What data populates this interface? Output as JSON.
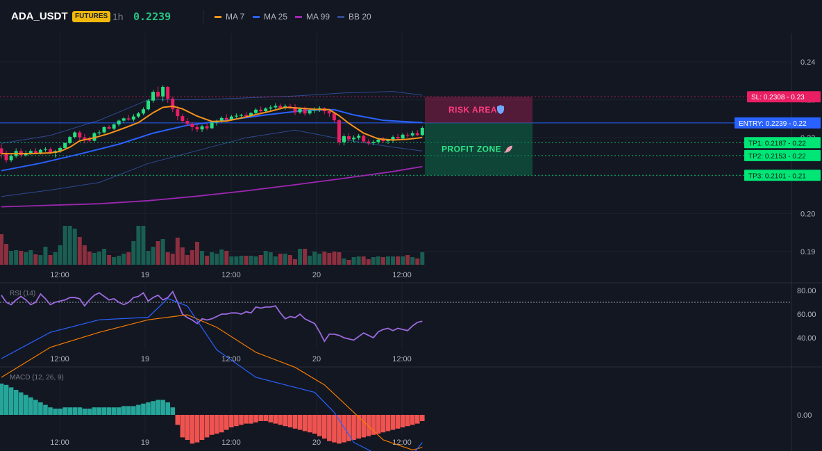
{
  "header": {
    "symbol": "ADA_USDT",
    "badge": "FUTURES",
    "timeframe": "1h",
    "price": "0.2239",
    "legend": [
      {
        "label": "MA 7",
        "color": "#f7931a"
      },
      {
        "label": "MA 25",
        "color": "#2962ff"
      },
      {
        "label": "MA 99",
        "color": "#9c27b0"
      },
      {
        "label": "BB 20",
        "color": "#2e4a8f"
      }
    ]
  },
  "colors": {
    "up": "#26e07f",
    "down": "#e91e63",
    "vol_up": "#1a5e52",
    "vol_down": "#8c2f3f",
    "hist_up": "#26a69a",
    "hist_down": "#ef5350"
  },
  "x_ticks": [
    "12:00",
    "19",
    "12:00",
    "20",
    "12:00"
  ],
  "chart_data": [
    {
      "type": "candlestick",
      "title": "",
      "ylim": [
        0.185,
        0.245
      ],
      "y_ticks": [
        "0.24",
        "0.23",
        "0.22",
        "0.21",
        "0.20",
        "0.19"
      ],
      "candles": [
        [
          0.2172,
          0.2183,
          0.2146,
          0.2157
        ],
        [
          0.2157,
          0.2166,
          0.2134,
          0.2141
        ],
        [
          0.2141,
          0.2156,
          0.2136,
          0.2152
        ],
        [
          0.2152,
          0.2172,
          0.2147,
          0.2165
        ],
        [
          0.2165,
          0.2172,
          0.2148,
          0.2154
        ],
        [
          0.2154,
          0.2166,
          0.215,
          0.216
        ],
        [
          0.216,
          0.217,
          0.2155,
          0.2165
        ],
        [
          0.2165,
          0.2173,
          0.2158,
          0.216
        ],
        [
          0.216,
          0.2171,
          0.2156,
          0.2168
        ],
        [
          0.2168,
          0.2175,
          0.2163,
          0.217
        ],
        [
          0.217,
          0.2174,
          0.2157,
          0.216
        ],
        [
          0.216,
          0.2168,
          0.2148,
          0.2165
        ],
        [
          0.2165,
          0.2178,
          0.216,
          0.2173
        ],
        [
          0.2173,
          0.2188,
          0.217,
          0.2186
        ],
        [
          0.2186,
          0.2205,
          0.2183,
          0.2202
        ],
        [
          0.2202,
          0.2217,
          0.2198,
          0.2214
        ],
        [
          0.2214,
          0.2219,
          0.2195,
          0.2201
        ],
        [
          0.2201,
          0.221,
          0.2185,
          0.2196
        ],
        [
          0.2196,
          0.2203,
          0.2188,
          0.2192
        ],
        [
          0.2192,
          0.2215,
          0.219,
          0.2212
        ],
        [
          0.2212,
          0.222,
          0.2208,
          0.2214
        ],
        [
          0.2214,
          0.223,
          0.2211,
          0.2228
        ],
        [
          0.2228,
          0.2233,
          0.2222,
          0.2224
        ],
        [
          0.2224,
          0.2238,
          0.222,
          0.2235
        ],
        [
          0.2235,
          0.2248,
          0.223,
          0.2245
        ],
        [
          0.2245,
          0.2254,
          0.224,
          0.2251
        ],
        [
          0.2251,
          0.226,
          0.2245,
          0.2248
        ],
        [
          0.2248,
          0.2262,
          0.2243,
          0.2256
        ],
        [
          0.2256,
          0.2268,
          0.2252,
          0.2264
        ],
        [
          0.2264,
          0.228,
          0.226,
          0.2275
        ],
        [
          0.2275,
          0.2302,
          0.2272,
          0.2298
        ],
        [
          0.2298,
          0.2326,
          0.2292,
          0.2321
        ],
        [
          0.2321,
          0.2335,
          0.2303,
          0.2309
        ],
        [
          0.2309,
          0.2338,
          0.2296,
          0.2334
        ],
        [
          0.2334,
          0.2336,
          0.2292,
          0.2303
        ],
        [
          0.2303,
          0.2308,
          0.2268,
          0.2275
        ],
        [
          0.2275,
          0.2283,
          0.2246,
          0.2257
        ],
        [
          0.2257,
          0.2263,
          0.2239,
          0.2244
        ],
        [
          0.2244,
          0.2252,
          0.2231,
          0.2237
        ],
        [
          0.2237,
          0.2241,
          0.2218,
          0.2228
        ],
        [
          0.2228,
          0.2236,
          0.2215,
          0.2222
        ],
        [
          0.2222,
          0.2234,
          0.2215,
          0.223
        ],
        [
          0.223,
          0.2238,
          0.222,
          0.2225
        ],
        [
          0.2225,
          0.2245,
          0.2223,
          0.224
        ],
        [
          0.224,
          0.2248,
          0.2232,
          0.2244
        ],
        [
          0.2244,
          0.2256,
          0.224,
          0.2252
        ],
        [
          0.2252,
          0.2262,
          0.2244,
          0.2248
        ],
        [
          0.2248,
          0.226,
          0.2245,
          0.2256
        ],
        [
          0.2256,
          0.2264,
          0.2252,
          0.2258
        ],
        [
          0.2258,
          0.2263,
          0.225,
          0.226
        ],
        [
          0.226,
          0.2268,
          0.2254,
          0.2257
        ],
        [
          0.2257,
          0.2268,
          0.2254,
          0.2265
        ],
        [
          0.2265,
          0.2278,
          0.2262,
          0.2274
        ],
        [
          0.2274,
          0.2282,
          0.2266,
          0.227
        ],
        [
          0.227,
          0.228,
          0.2265,
          0.2277
        ],
        [
          0.2277,
          0.2286,
          0.2272,
          0.228
        ],
        [
          0.228,
          0.2291,
          0.2276,
          0.2284
        ],
        [
          0.2284,
          0.229,
          0.2275,
          0.2279
        ],
        [
          0.2279,
          0.2288,
          0.2274,
          0.2283
        ],
        [
          0.2283,
          0.2289,
          0.2276,
          0.2281
        ],
        [
          0.2281,
          0.2288,
          0.226,
          0.2267
        ],
        [
          0.2267,
          0.228,
          0.2263,
          0.2276
        ],
        [
          0.2276,
          0.2282,
          0.2258,
          0.2264
        ],
        [
          0.2264,
          0.2276,
          0.226,
          0.2272
        ],
        [
          0.2272,
          0.228,
          0.2265,
          0.2275
        ],
        [
          0.2275,
          0.2283,
          0.2268,
          0.2278
        ],
        [
          0.2278,
          0.228,
          0.2262,
          0.227
        ],
        [
          0.227,
          0.2274,
          0.2255,
          0.2264
        ],
        [
          0.2264,
          0.2268,
          0.224,
          0.2246
        ],
        [
          0.2246,
          0.225,
          0.218,
          0.2188
        ],
        [
          0.2188,
          0.221,
          0.218,
          0.2204
        ],
        [
          0.2204,
          0.2212,
          0.219,
          0.2196
        ],
        [
          0.2196,
          0.2206,
          0.2188,
          0.22
        ],
        [
          0.22,
          0.221,
          0.2194,
          0.2205
        ],
        [
          0.2205,
          0.2208,
          0.2186,
          0.219
        ],
        [
          0.219,
          0.2196,
          0.218,
          0.2186
        ],
        [
          0.2186,
          0.2194,
          0.2181,
          0.2189
        ],
        [
          0.2189,
          0.22,
          0.2184,
          0.2195
        ],
        [
          0.2195,
          0.2202,
          0.2186,
          0.2191
        ],
        [
          0.2191,
          0.2197,
          0.2184,
          0.2194
        ],
        [
          0.2194,
          0.2206,
          0.2188,
          0.2202
        ],
        [
          0.2202,
          0.221,
          0.2194,
          0.2198
        ],
        [
          0.2198,
          0.2212,
          0.2195,
          0.2208
        ],
        [
          0.2208,
          0.2214,
          0.22,
          0.2206
        ],
        [
          0.2206,
          0.2218,
          0.2203,
          0.2212
        ],
        [
          0.2212,
          0.222,
          0.2204,
          0.2207
        ],
        [
          0.2207,
          0.223,
          0.2205,
          0.2226
        ]
      ],
      "volume": [
        44,
        30,
        20,
        21,
        20,
        18,
        21,
        15,
        14,
        26,
        14,
        18,
        28,
        56,
        56,
        52,
        40,
        28,
        19,
        17,
        19,
        23,
        14,
        11,
        13,
        16,
        18,
        34,
        56,
        56,
        20,
        26,
        34,
        37,
        18,
        16,
        39,
        25,
        14,
        21,
        33,
        20,
        13,
        18,
        16,
        22,
        20,
        12,
        12,
        13,
        13,
        13,
        12,
        14,
        20,
        18,
        12,
        16,
        16,
        14,
        8,
        23,
        23,
        13,
        19,
        16,
        19,
        17,
        19,
        18,
        9,
        7,
        11,
        12,
        12,
        8,
        11,
        12,
        11,
        12,
        12,
        12,
        12,
        14,
        11,
        9,
        18
      ],
      "ma7": [
        [
          0,
          0.2158
        ],
        [
          6,
          0.2158
        ],
        [
          10,
          0.216
        ],
        [
          12,
          0.2164
        ],
        [
          14,
          0.2175
        ],
        [
          16,
          0.2192
        ],
        [
          19,
          0.22
        ],
        [
          22,
          0.2211
        ],
        [
          25,
          0.2225
        ],
        [
          28,
          0.224
        ],
        [
          31,
          0.2266
        ],
        [
          33,
          0.228
        ],
        [
          35,
          0.2283
        ],
        [
          37,
          0.2276
        ],
        [
          40,
          0.2257
        ],
        [
          43,
          0.2243
        ],
        [
          46,
          0.2244
        ],
        [
          49,
          0.2252
        ],
        [
          52,
          0.2261
        ],
        [
          55,
          0.227
        ],
        [
          58,
          0.228
        ],
        [
          61,
          0.2278
        ],
        [
          64,
          0.2275
        ],
        [
          67,
          0.2274
        ],
        [
          69,
          0.2258
        ],
        [
          71,
          0.2238
        ],
        [
          74,
          0.2212
        ],
        [
          77,
          0.2197
        ],
        [
          80,
          0.2194
        ],
        [
          83,
          0.2196
        ],
        [
          85,
          0.2199
        ],
        [
          86,
          0.2201
        ]
      ],
      "ma25": [
        [
          0,
          0.2113
        ],
        [
          8,
          0.2133
        ],
        [
          16,
          0.2157
        ],
        [
          24,
          0.2183
        ],
        [
          31,
          0.2212
        ],
        [
          38,
          0.2233
        ],
        [
          46,
          0.2246
        ],
        [
          54,
          0.226
        ],
        [
          62,
          0.2272
        ],
        [
          68,
          0.2274
        ],
        [
          72,
          0.226
        ],
        [
          78,
          0.2246
        ],
        [
          84,
          0.2241
        ],
        [
          86,
          0.224
        ]
      ],
      "ma99": [
        [
          0,
          0.2018
        ],
        [
          10,
          0.2022
        ],
        [
          20,
          0.2026
        ],
        [
          30,
          0.2034
        ],
        [
          40,
          0.2046
        ],
        [
          50,
          0.206
        ],
        [
          60,
          0.2076
        ],
        [
          70,
          0.2093
        ],
        [
          80,
          0.2111
        ],
        [
          86,
          0.2124
        ]
      ],
      "bb_upper": [
        [
          0,
          0.2185
        ],
        [
          10,
          0.2206
        ],
        [
          20,
          0.2246
        ],
        [
          30,
          0.23
        ],
        [
          40,
          0.23
        ],
        [
          50,
          0.2305
        ],
        [
          60,
          0.231
        ],
        [
          70,
          0.2318
        ],
        [
          80,
          0.2322
        ],
        [
          86,
          0.2312
        ]
      ],
      "bb_lower": [
        [
          0,
          0.2045
        ],
        [
          10,
          0.2062
        ],
        [
          20,
          0.2082
        ],
        [
          30,
          0.2132
        ],
        [
          40,
          0.2166
        ],
        [
          50,
          0.22
        ],
        [
          60,
          0.222
        ],
        [
          70,
          0.2195
        ],
        [
          80,
          0.2175
        ],
        [
          86,
          0.2165
        ]
      ],
      "levels": [
        {
          "name": "SL",
          "label": "SL: 0.2308",
          "value": 0.2308,
          "tick": "0.23",
          "color": "#e91e63",
          "style": "dotted"
        },
        {
          "name": "ENTRY",
          "label": "ENTRY: 0.2239",
          "value": 0.2239,
          "tick": "0.22",
          "color": "#2962ff",
          "style": "solid"
        },
        {
          "name": "TP1",
          "label": "TP1: 0.2187",
          "value": 0.2187,
          "tick": "0.22",
          "color": "#00e676",
          "style": "dotted"
        },
        {
          "name": "TP2",
          "label": "TP2: 0.2153",
          "value": 0.2153,
          "tick": "0.22",
          "color": "#00e676",
          "style": "dotted"
        },
        {
          "name": "TP3",
          "label": "TP3: 0.2101",
          "value": 0.2101,
          "tick": "0.21",
          "color": "#00e676",
          "style": "dotted"
        }
      ],
      "zones": {
        "risk_label": "RISK AREA",
        "profit_label": "PROFIT ZONE"
      }
    },
    {
      "type": "line",
      "title": "RSI (14)",
      "ylim": [
        28,
        88
      ],
      "y_ticks": [
        "80.00",
        "60.00",
        "40.00"
      ],
      "reference_line": 70,
      "values": [
        76,
        70,
        68,
        72,
        75,
        72,
        68,
        70,
        77,
        73,
        68,
        70,
        71,
        72,
        74,
        74,
        73,
        67,
        72,
        76,
        78,
        75,
        72,
        73,
        70,
        68,
        70,
        74,
        75,
        78,
        71,
        74,
        76,
        72,
        74,
        79,
        70,
        60,
        57,
        55,
        52,
        56,
        55,
        56,
        58,
        60,
        60,
        61,
        61,
        60,
        62,
        61,
        66,
        65,
        66,
        66,
        67,
        61,
        56,
        58,
        57,
        60,
        56,
        54,
        52,
        45,
        37,
        43,
        43,
        42,
        40,
        39,
        38,
        41,
        44,
        42,
        40,
        45,
        47,
        48,
        46,
        48,
        47,
        46,
        50,
        53,
        54
      ],
      "line_color": "#9c6ade"
    },
    {
      "type": "line",
      "title": "MACD (12, 26, 9)",
      "ylim": [
        -0.0012,
        0.0012
      ],
      "y_ticks": [
        "0.00"
      ],
      "macd": [
        [
          0,
          0.00045
        ],
        [
          10,
          0.00066
        ],
        [
          20,
          0.00076
        ],
        [
          30,
          0.00078
        ],
        [
          34,
          0.00093
        ],
        [
          38,
          0.00087
        ],
        [
          44,
          0.00052
        ],
        [
          52,
          0.0003
        ],
        [
          58,
          0.00024
        ],
        [
          64,
          0.00018
        ],
        [
          68,
          2e-05
        ],
        [
          72,
          -0.00022
        ],
        [
          76,
          -0.0003
        ],
        [
          80,
          -0.00035
        ],
        [
          84,
          -0.00032
        ],
        [
          86,
          -0.00022
        ]
      ],
      "signal": [
        [
          0,
          0.0003
        ],
        [
          10,
          0.00054
        ],
        [
          20,
          0.00066
        ],
        [
          30,
          0.00076
        ],
        [
          38,
          0.0008
        ],
        [
          44,
          0.0007
        ],
        [
          52,
          0.0005
        ],
        [
          60,
          0.00038
        ],
        [
          66,
          0.00024
        ],
        [
          72,
          2e-05
        ],
        [
          78,
          -0.0002
        ],
        [
          84,
          -0.00028
        ],
        [
          86,
          -0.00026
        ]
      ],
      "histogram": [
        0.00025,
        0.00024,
        0.00022,
        0.0002,
        0.00018,
        0.00016,
        0.00014,
        0.00012,
        0.0001,
        8e-05,
        6e-05,
        5e-05,
        5e-05,
        6e-05,
        6e-05,
        6e-05,
        6e-05,
        5e-05,
        5e-05,
        6e-05,
        6e-05,
        6e-05,
        6e-05,
        6e-05,
        6e-05,
        7e-05,
        7e-05,
        7e-05,
        8e-05,
        9e-05,
        0.0001,
        0.00011,
        0.00012,
        0.00012,
        0.0001,
        6e-05,
        -8e-05,
        -0.00018,
        -0.0002,
        -0.00023,
        -0.00022,
        -0.0002,
        -0.00018,
        -0.00016,
        -0.00015,
        -0.00014,
        -0.00012,
        -0.0001,
        -9e-05,
        -8e-05,
        -7e-05,
        -7e-05,
        -6e-05,
        -5e-05,
        -5e-05,
        -6e-05,
        -7e-05,
        -8e-05,
        -9e-05,
        -0.0001,
        -0.00011,
        -0.00012,
        -0.00013,
        -0.00014,
        -0.00015,
        -0.00017,
        -0.00019,
        -0.00021,
        -0.00022,
        -0.00023,
        -0.00022,
        -0.00021,
        -0.0002,
        -0.00019,
        -0.00018,
        -0.00017,
        -0.00016,
        -0.00015,
        -0.00014,
        -0.00013,
        -0.00012,
        -0.00011,
        -0.0001,
        -9e-05,
        -8e-05,
        -7e-05,
        -5e-05
      ],
      "macd_color": "#2962ff",
      "signal_color": "#f57c00"
    }
  ]
}
